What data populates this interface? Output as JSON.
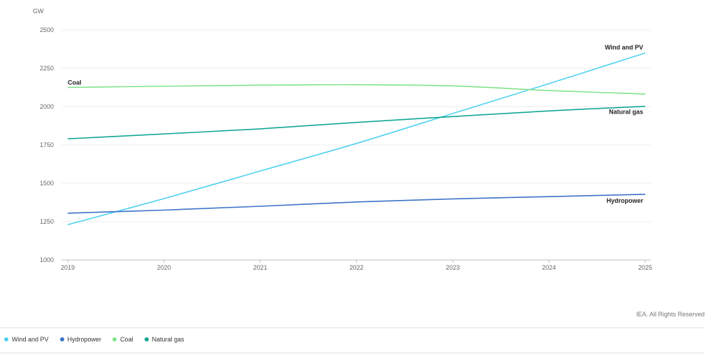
{
  "chart_data": {
    "type": "line",
    "title": "",
    "ylabel": "GW",
    "xlabel": "",
    "x": [
      2019,
      2020,
      2021,
      2022,
      2023,
      2024,
      2025
    ],
    "ylim": [
      1000,
      2500
    ],
    "yticks": [
      1000,
      1250,
      1500,
      1750,
      2000,
      2250,
      2500
    ],
    "grid": true,
    "legend_position": "bottom-left",
    "series": [
      {
        "name": "Wind and PV",
        "color": "#4fd2f0",
        "values": [
          1230,
          1400,
          1580,
          1760,
          1955,
          2150,
          2350
        ]
      },
      {
        "name": "Hydropower",
        "color": "#3a72c8",
        "values": [
          1305,
          1325,
          1350,
          1378,
          1398,
          1413,
          1428
        ]
      },
      {
        "name": "Coal",
        "color": "#7fe38a",
        "values": [
          2125,
          2133,
          2140,
          2143,
          2135,
          2105,
          2082
        ]
      },
      {
        "name": "Natural gas",
        "color": "#11a595",
        "values": [
          1790,
          1822,
          1855,
          1897,
          1935,
          1972,
          2002
        ]
      }
    ]
  },
  "credit": "IEA. All Rights Reserved"
}
